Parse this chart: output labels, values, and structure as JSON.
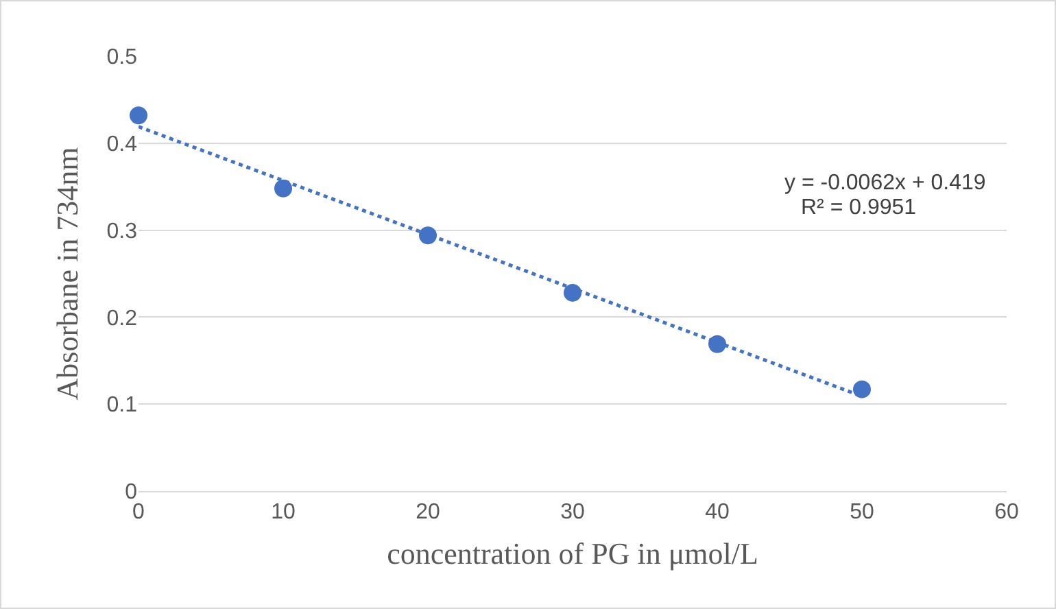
{
  "chart_data": {
    "type": "scatter",
    "xlabel": "concentration of PG in μmol/L",
    "ylabel": "Absorbane in 734nm",
    "x": [
      0,
      10,
      20,
      30,
      40,
      50
    ],
    "series": [
      {
        "color": "#4472c4",
        "marker": "circle",
        "values": [
          0.432,
          0.348,
          0.294,
          0.228,
          0.169,
          0.117
        ]
      },
      {
        "type": "line",
        "color": "#4472c4",
        "line_style": "dotted",
        "marker": "none",
        "x": [
          0,
          50
        ],
        "values": [
          0.419,
          0.109
        ]
      }
    ],
    "xlim": [
      0,
      60
    ],
    "xticks": [
      0,
      10,
      20,
      30,
      40,
      50,
      60
    ],
    "ylim": [
      0,
      0.5
    ],
    "yticks": [
      0,
      0.1,
      0.2,
      0.3,
      0.4,
      0.5
    ],
    "grid": "y",
    "annotations": [
      "y = -0.0062x + 0.419",
      "R² = 0.9951"
    ]
  }
}
